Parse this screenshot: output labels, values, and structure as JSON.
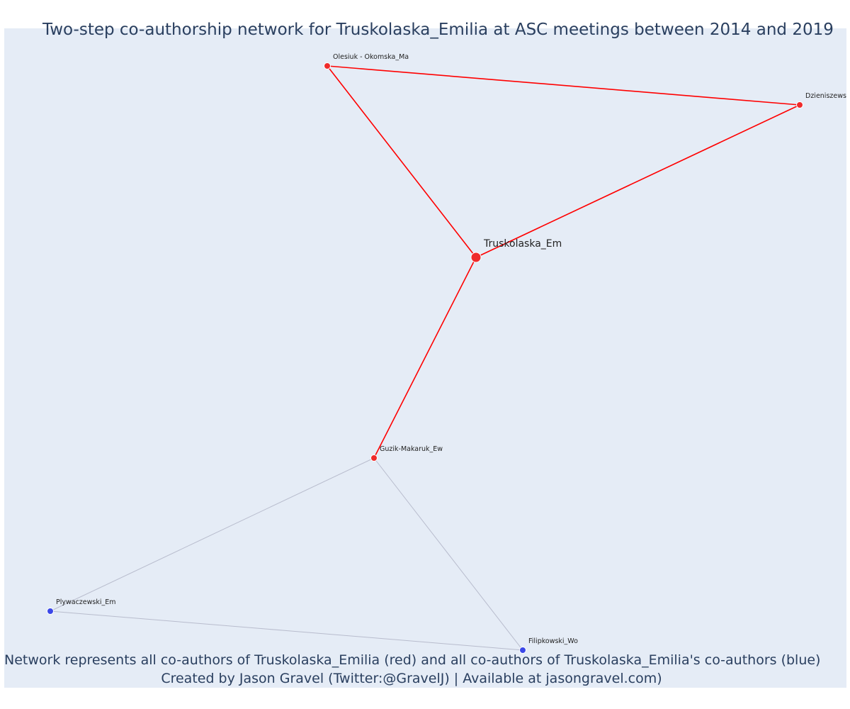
{
  "title": "Two-step co-authorship network for Truskolaska_Emilia at ASC meetings between 2014 and 2019",
  "caption": {
    "line1": "Network represents all co-authors of Truskolaska_Emilia (red) and all co-authors of Truskolaska_Emilia's co-authors (blue)",
    "line2": "Created by Jason Gravel (Twitter:@GravelJ) | Available at jasongravel.com)"
  },
  "colors": {
    "background": "#e5ecf6",
    "direct": "#ef2b2b",
    "direct_edge": "#ff0000",
    "indirect": "#3b48e8",
    "indirect_edge": "#b8bccd",
    "text": "#2a3f5f"
  },
  "chart_data": {
    "type": "network",
    "focal": "Truskolaska_Em",
    "nodes": [
      {
        "id": "truskolaska",
        "label": "Truskolaska_Em",
        "group": "focal"
      },
      {
        "id": "olesiuk",
        "label": "Olesiuk - Okomska_Ma",
        "group": "coauthor"
      },
      {
        "id": "dzieniszewski",
        "label": "Dzieniszewsl",
        "group": "coauthor"
      },
      {
        "id": "guzik",
        "label": "Guzik-Makaruk_Ew",
        "group": "coauthor"
      },
      {
        "id": "plywaczewski",
        "label": "Plywaczewski_Em",
        "group": "second"
      },
      {
        "id": "filipkowski",
        "label": "Filipkowski_Wo",
        "group": "second"
      }
    ],
    "edges": [
      {
        "source": "olesiuk",
        "target": "dzieniszewski",
        "type": "direct"
      },
      {
        "source": "olesiuk",
        "target": "truskolaska",
        "type": "direct"
      },
      {
        "source": "dzieniszewski",
        "target": "truskolaska",
        "type": "direct"
      },
      {
        "source": "truskolaska",
        "target": "guzik",
        "type": "direct"
      },
      {
        "source": "guzik",
        "target": "plywaczewski",
        "type": "indirect"
      },
      {
        "source": "guzik",
        "target": "filipkowski",
        "type": "indirect"
      },
      {
        "source": "plywaczewski",
        "target": "filipkowski",
        "type": "indirect"
      }
    ]
  }
}
